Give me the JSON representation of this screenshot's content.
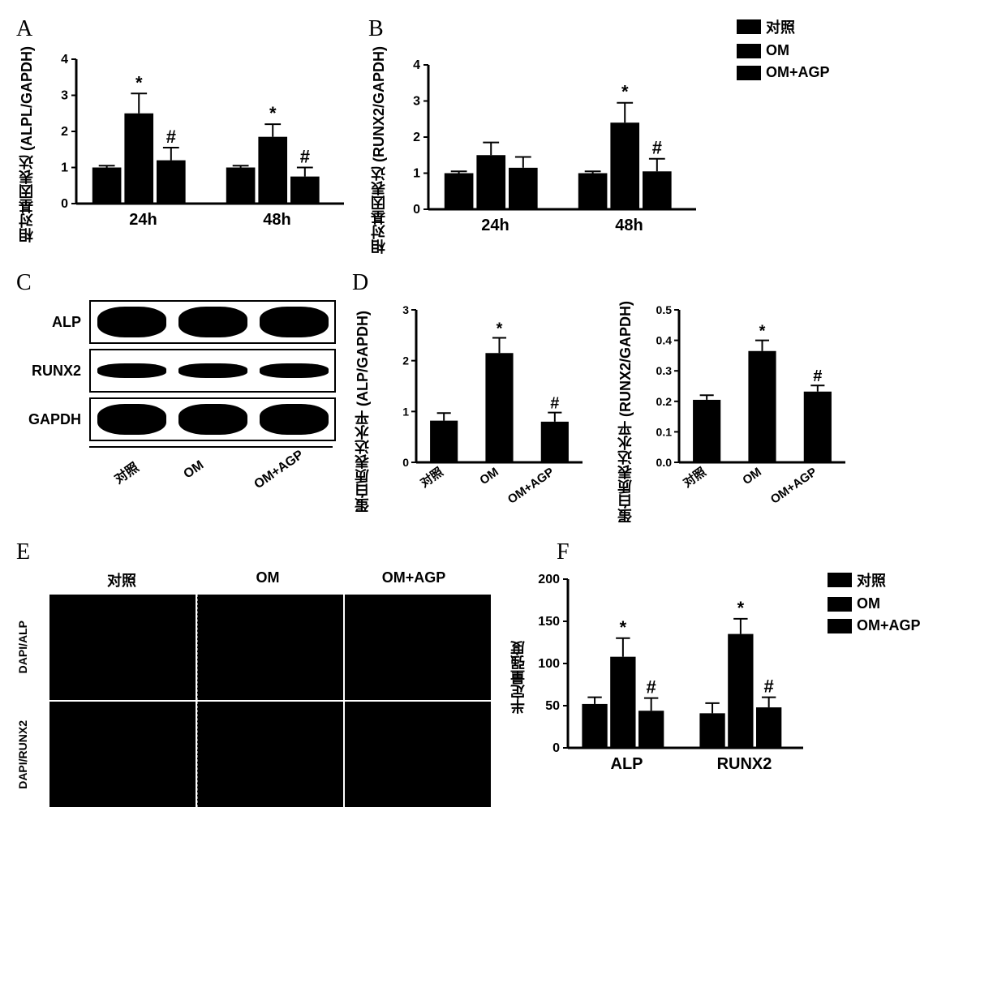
{
  "colors": {
    "bar": "#000000",
    "bg": "#ffffff",
    "axis": "#000000"
  },
  "legend_items": [
    "对照",
    "OM",
    "OM+AGP"
  ],
  "panelA": {
    "label": "A",
    "type": "bar",
    "ylabel": "相对基因表达\n(ALPL/GAPDH)",
    "ylim": [
      0,
      4
    ],
    "ytick_step": 1,
    "groups": [
      "24h",
      "48h"
    ],
    "series": [
      "对照",
      "OM",
      "OM+AGP"
    ],
    "values": [
      [
        1.0,
        2.5,
        1.2
      ],
      [
        1.0,
        1.85,
        0.75
      ]
    ],
    "errors": [
      [
        0.05,
        0.55,
        0.35
      ],
      [
        0.05,
        0.35,
        0.25
      ]
    ],
    "annotations": [
      [
        "",
        "*",
        "#"
      ],
      [
        "",
        "*",
        "#"
      ]
    ],
    "bar_width": 0.24,
    "label_fontsize": 18,
    "tick_fontsize": 16
  },
  "panelB": {
    "label": "B",
    "type": "bar",
    "ylabel": "相对基因表达\n(RUNX2/GAPDH)",
    "ylim": [
      0,
      4
    ],
    "ytick_step": 1,
    "groups": [
      "24h",
      "48h"
    ],
    "series": [
      "对照",
      "OM",
      "OM+AGP"
    ],
    "values": [
      [
        1.0,
        1.5,
        1.15
      ],
      [
        1.0,
        2.4,
        1.05
      ]
    ],
    "errors": [
      [
        0.05,
        0.35,
        0.3
      ],
      [
        0.05,
        0.55,
        0.35
      ]
    ],
    "annotations": [
      [
        "",
        "",
        ""
      ],
      [
        "",
        "*",
        "#"
      ]
    ],
    "bar_width": 0.24,
    "label_fontsize": 18,
    "tick_fontsize": 16
  },
  "panelC": {
    "label": "C",
    "type": "western-blot",
    "rows": [
      "ALP",
      "RUNX2",
      "GAPDH"
    ],
    "lanes": [
      "对照",
      "OM",
      "OM+AGP"
    ],
    "band_heights": [
      38,
      18,
      38
    ],
    "band_widths": [
      85,
      85,
      85
    ]
  },
  "panelD": {
    "label": "D",
    "type": "bar",
    "charts": [
      {
        "ylabel": "蛋白质表达水平\n(ALP/GAPDH)",
        "ylim": [
          0,
          3
        ],
        "ytick_step": 1,
        "categories": [
          "对照",
          "OM",
          "OM+AGP"
        ],
        "values": [
          0.82,
          2.15,
          0.8
        ],
        "errors": [
          0.15,
          0.3,
          0.18
        ],
        "annotations": [
          "",
          "*",
          "#"
        ],
        "bar_width": 0.5,
        "rotate_x": -35
      },
      {
        "ylabel": "蛋白质表达水平\n(RUNX2/GAPDH)",
        "ylim": [
          0,
          0.5
        ],
        "ytick_step": 0.1,
        "categories": [
          "对照",
          "OM",
          "OM+AGP"
        ],
        "values": [
          0.205,
          0.365,
          0.232
        ],
        "errors": [
          0.015,
          0.035,
          0.02
        ],
        "annotations": [
          "",
          "*",
          "#"
        ],
        "bar_width": 0.5,
        "rotate_x": -35
      }
    ]
  },
  "panelE": {
    "label": "E",
    "type": "immunofluorescence",
    "columns": [
      "对照",
      "OM",
      "OM+AGP"
    ],
    "rows": [
      "DAPI/ALP",
      "DAPI/RUNX2"
    ],
    "cell_bg": "#000000"
  },
  "panelF": {
    "label": "F",
    "type": "bar",
    "ylabel": "半定量强度",
    "ylim": [
      0,
      200
    ],
    "ytick_step": 50,
    "groups": [
      "ALP",
      "RUNX2"
    ],
    "series": [
      "对照",
      "OM",
      "OM+AGP"
    ],
    "values": [
      [
        52,
        108,
        44
      ],
      [
        41,
        135,
        48
      ]
    ],
    "errors": [
      [
        8,
        22,
        15
      ],
      [
        12,
        18,
        12
      ]
    ],
    "annotations": [
      [
        "",
        "*",
        "#"
      ],
      [
        "",
        "*",
        "#"
      ]
    ],
    "bar_width": 0.24
  }
}
